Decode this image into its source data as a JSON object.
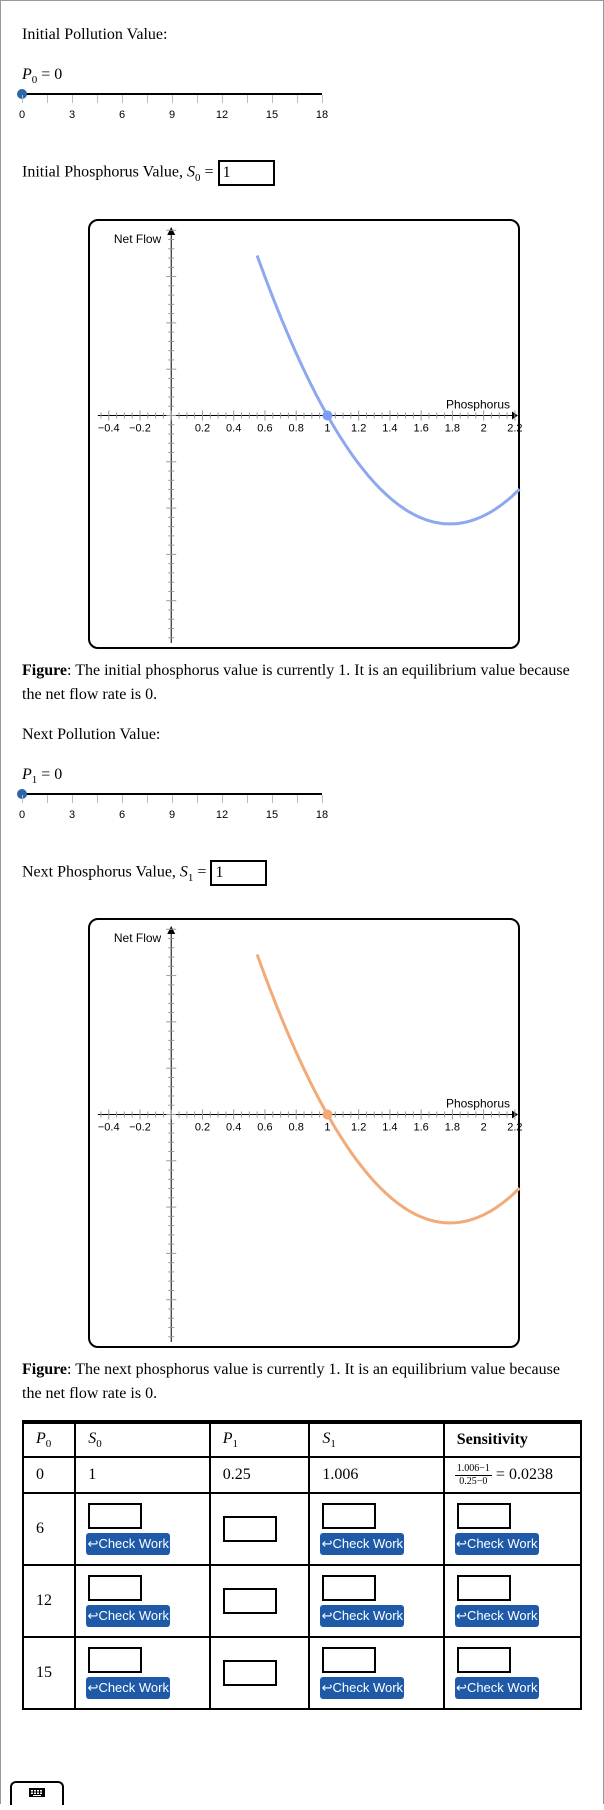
{
  "section1": {
    "heading": "Initial Pollution Value:",
    "slider_var": "P",
    "slider_sub": "0",
    "slider_value_text": "= 0",
    "slider_value": 0,
    "slider_ticks": [
      "0",
      "3",
      "6",
      "9",
      "12",
      "15",
      "18"
    ],
    "phos_label": "Initial Phosphorus Value, ",
    "phos_var": "S",
    "phos_sub": "0",
    "phos_eq": " =",
    "phos_value": "1"
  },
  "chart1": {
    "ylabel": "Net Flow",
    "xlabel": "Phosphorus",
    "x_ticks": [
      "−0.4",
      "−0.2",
      "0.2",
      "0.4",
      "0.6",
      "0.8",
      "1",
      "1.2",
      "1.4",
      "1.6",
      "1.8",
      "2",
      "2.2"
    ],
    "curve_color": "#8ea8f0",
    "point_color": "#7b9ef2"
  },
  "caption1": {
    "bold": "Figure",
    "text": ": The initial phosphorus value is currently 1. It is an equilibrium value because the net flow rate is 0."
  },
  "section2": {
    "heading": "Next Pollution Value:",
    "slider_var": "P",
    "slider_sub": "1",
    "slider_value_text": "= 0",
    "slider_value": 0,
    "slider_ticks": [
      "0",
      "3",
      "6",
      "9",
      "12",
      "15",
      "18"
    ],
    "phos_label": "Next Phosphorus Value, ",
    "phos_var": "S",
    "phos_sub": "1",
    "phos_eq": " =",
    "phos_value": "1"
  },
  "chart2": {
    "ylabel": "Net Flow",
    "xlabel": "Phosphorus",
    "x_ticks": [
      "−0.4",
      "−0.2",
      "0.2",
      "0.4",
      "0.6",
      "0.8",
      "1",
      "1.2",
      "1.4",
      "1.6",
      "1.8",
      "2",
      "2.2"
    ],
    "curve_color": "#f2aa78",
    "point_color": "#f2aa78"
  },
  "caption2": {
    "bold": "Figure",
    "text": ": The next phosphorus value is currently 1. It is an equilibrium value because the net flow rate is 0."
  },
  "table": {
    "headers": {
      "p0_var": "P",
      "p0_sub": "0",
      "s0_var": "S",
      "s0_sub": "0",
      "p1_var": "P",
      "p1_sub": "1",
      "s1_var": "S",
      "s1_sub": "1",
      "sens": "Sensitivity"
    },
    "first_row": {
      "p0": "0",
      "s0": "1",
      "p1": "0.25",
      "s1": "1.006",
      "sens_num": "1.006−1",
      "sens_den": "0.25−0",
      "sens_result": "= 0.0238"
    },
    "rows": [
      {
        "p0": "6"
      },
      {
        "p0": "12"
      },
      {
        "p0": "15"
      }
    ],
    "check_label": "↩Check Work"
  },
  "keyboard_icon": "keyboard-icon"
}
